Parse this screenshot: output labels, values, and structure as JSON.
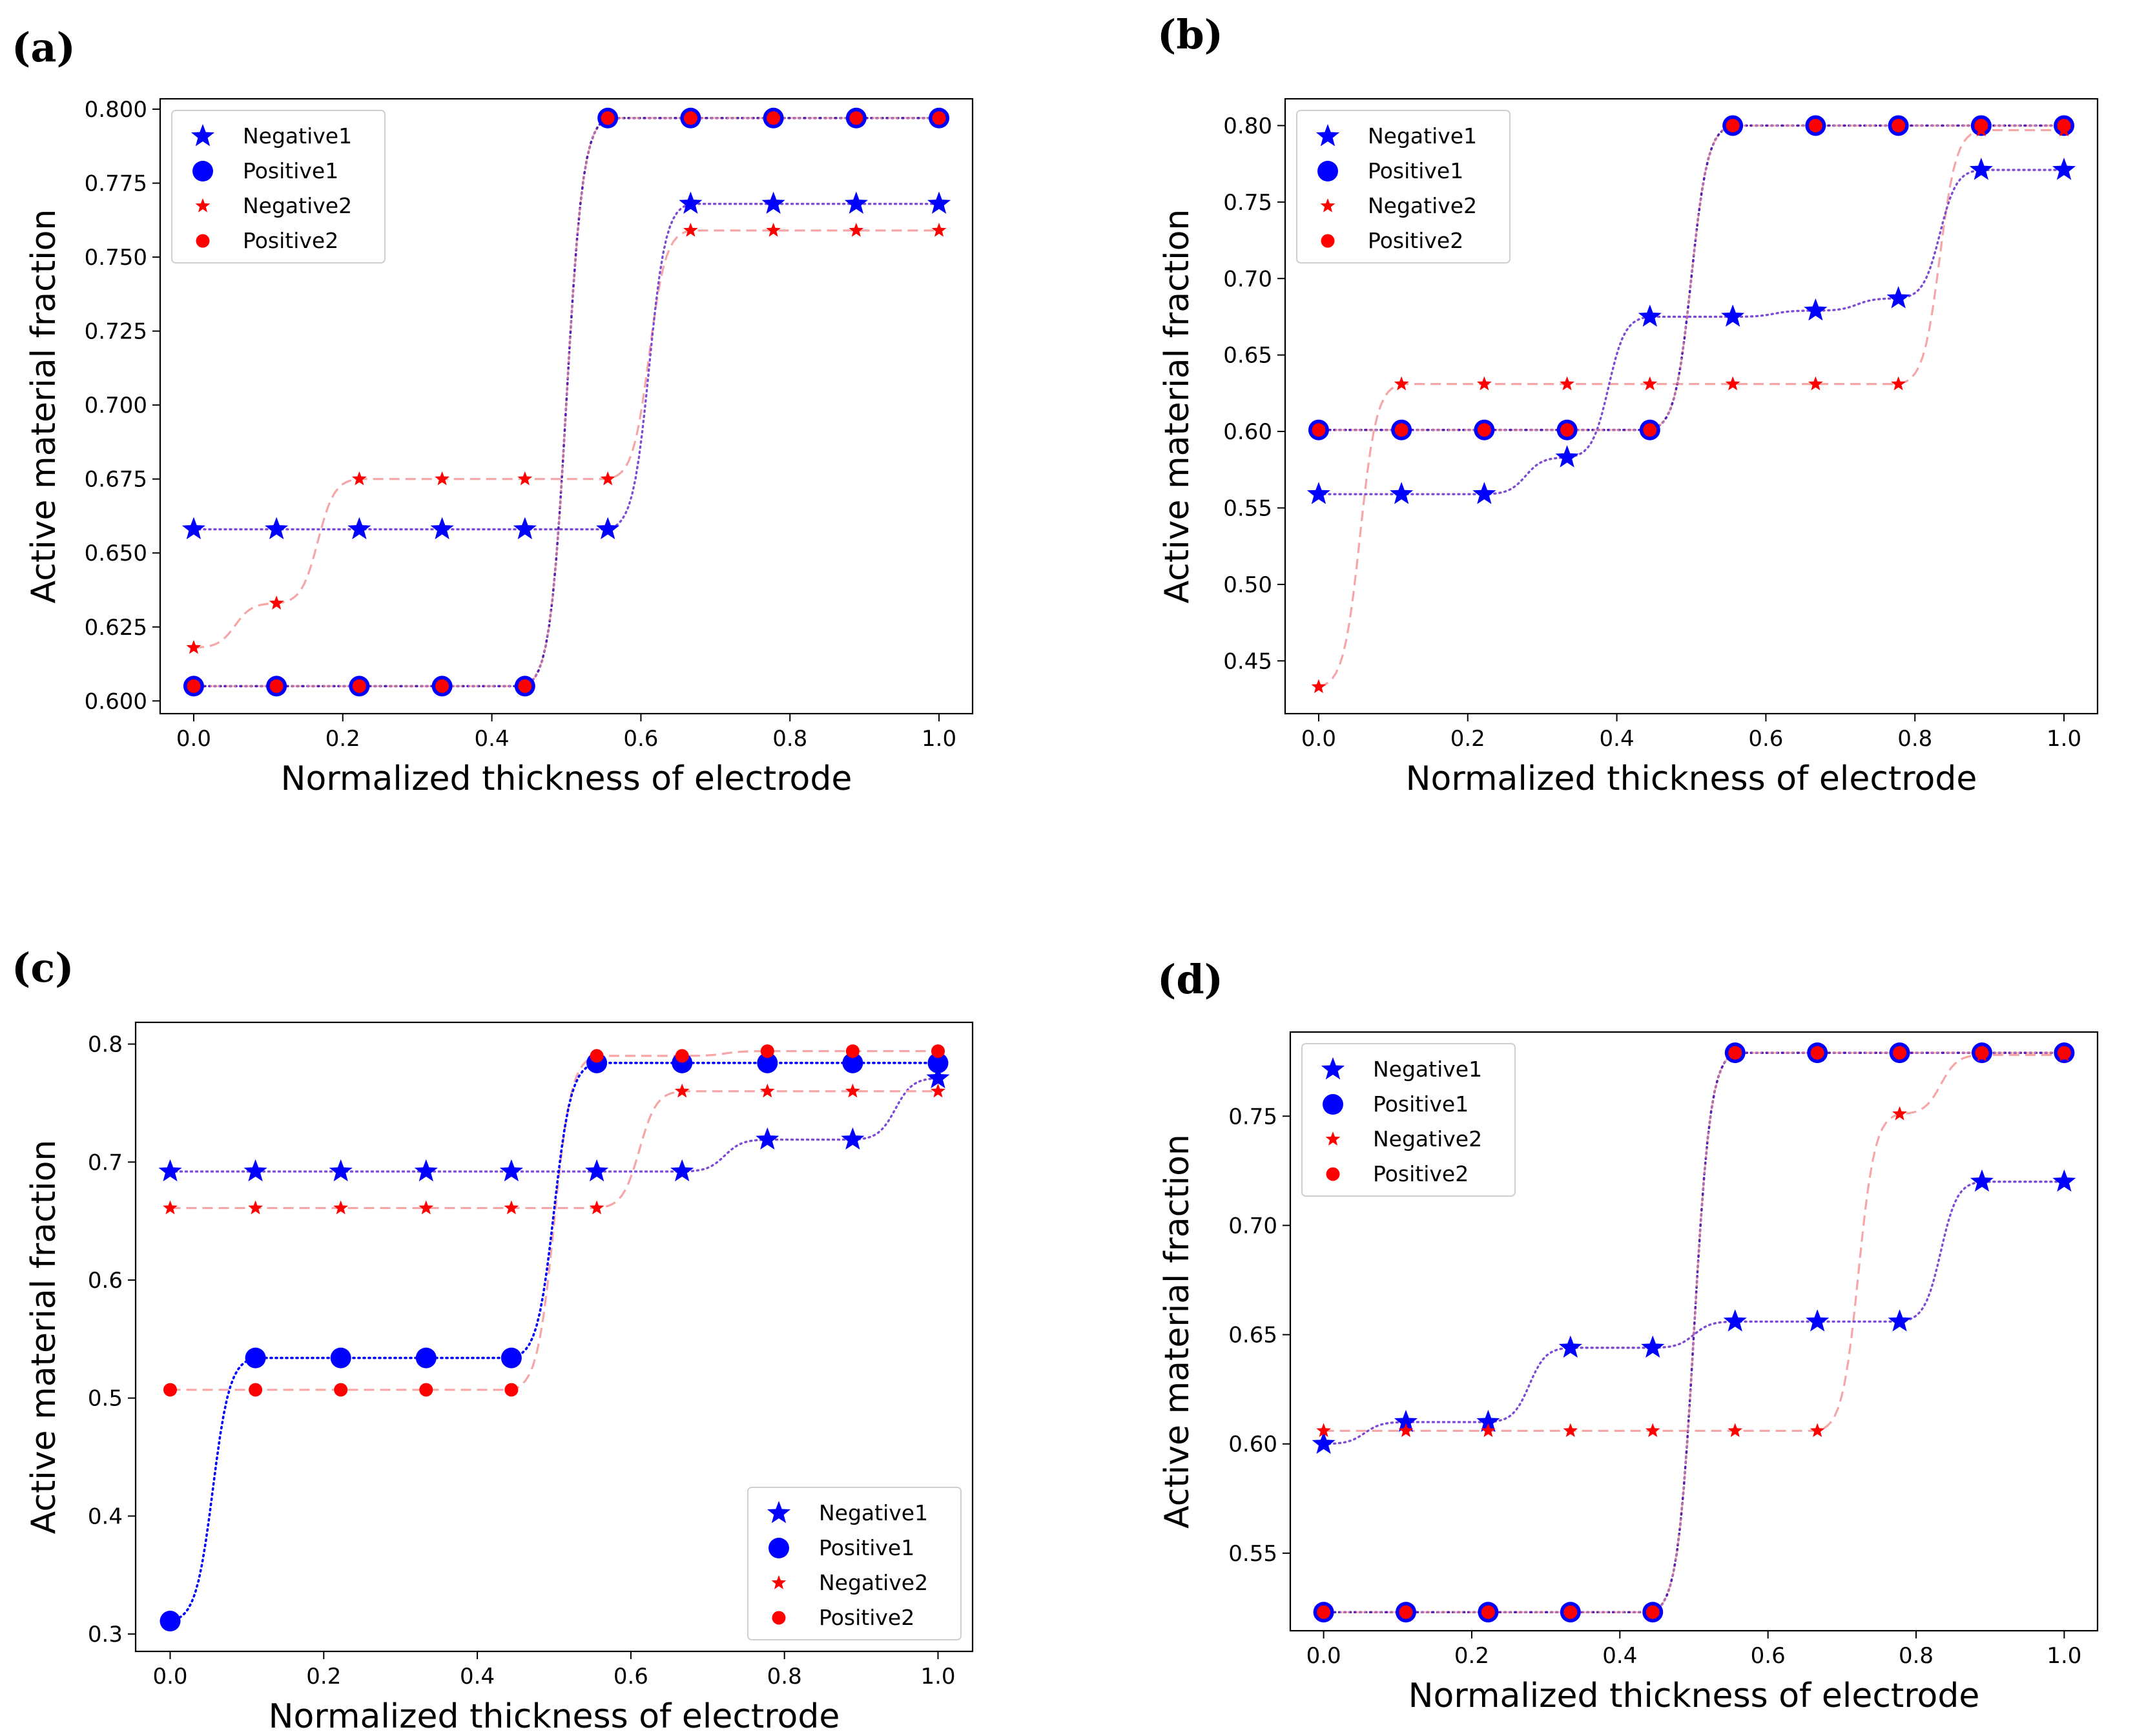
{
  "figure": {
    "colors": {
      "negative1": "#0000ff",
      "positive1": "#0000ff",
      "negative2": "#ff0000",
      "positive2": "#ff0000",
      "curve1": "#7d4bd6",
      "curve1_blue": "#0000ff",
      "curve2": "#f6a6a6"
    }
  },
  "chart_data": [
    {
      "label": "(a)",
      "type": "line",
      "xlabel": "Normalized thickness of electrode",
      "ylabel": "Active material fraction",
      "xlim": [
        -0.045,
        1.045
      ],
      "ylim": [
        0.5957,
        0.8035
      ],
      "xticks": [
        0.0,
        0.2,
        0.4,
        0.6,
        0.8,
        1.0
      ],
      "xtick_labels": [
        "0.0",
        "0.2",
        "0.4",
        "0.6",
        "0.8",
        "1.0"
      ],
      "yticks": [
        0.6,
        0.625,
        0.65,
        0.675,
        0.7,
        0.725,
        0.75,
        0.775,
        0.8
      ],
      "ytick_labels": [
        "0.600",
        "0.625",
        "0.650",
        "0.675",
        "0.700",
        "0.725",
        "0.750",
        "0.775",
        "0.800"
      ],
      "legend_position": "top-left",
      "x": [
        0.0,
        0.1111,
        0.2222,
        0.3333,
        0.4444,
        0.5556,
        0.6667,
        0.7778,
        0.8889,
        1.0
      ],
      "series": [
        {
          "name": "Negative1",
          "marker": "star-large",
          "values": [
            0.658,
            0.658,
            0.658,
            0.658,
            0.658,
            0.658,
            0.768,
            0.768,
            0.768,
            0.768
          ]
        },
        {
          "name": "Positive1",
          "marker": "circle-large",
          "values": [
            0.605,
            0.605,
            0.605,
            0.605,
            0.605,
            0.797,
            0.797,
            0.797,
            0.797,
            0.797
          ]
        },
        {
          "name": "Negative2",
          "marker": "star-small",
          "values": [
            0.618,
            0.633,
            0.675,
            0.675,
            0.675,
            0.675,
            0.759,
            0.759,
            0.759,
            0.759
          ]
        },
        {
          "name": "Positive2",
          "marker": "circle-small",
          "values": [
            0.605,
            0.605,
            0.605,
            0.605,
            0.605,
            0.797,
            0.797,
            0.797,
            0.797,
            0.797
          ]
        }
      ],
      "curve1_series": "Positive1",
      "curve1_style": "purple",
      "curve2_series": "Negative2"
    },
    {
      "label": "(b)",
      "type": "line",
      "xlabel": "Normalized thickness of electrode",
      "ylabel": "Active material fraction",
      "xlim": [
        -0.045,
        1.045
      ],
      "ylim": [
        0.4155,
        0.8175
      ],
      "xticks": [
        0.0,
        0.2,
        0.4,
        0.6,
        0.8,
        1.0
      ],
      "xtick_labels": [
        "0.0",
        "0.2",
        "0.4",
        "0.6",
        "0.8",
        "1.0"
      ],
      "yticks": [
        0.45,
        0.5,
        0.55,
        0.6,
        0.65,
        0.7,
        0.75,
        0.8
      ],
      "ytick_labels": [
        "0.45",
        "0.50",
        "0.55",
        "0.60",
        "0.65",
        "0.70",
        "0.75",
        "0.80"
      ],
      "legend_position": "top-left",
      "x": [
        0.0,
        0.1111,
        0.2222,
        0.3333,
        0.4444,
        0.5556,
        0.6667,
        0.7778,
        0.8889,
        1.0
      ],
      "series": [
        {
          "name": "Negative1",
          "marker": "star-large",
          "values": [
            0.559,
            0.559,
            0.559,
            0.583,
            0.675,
            0.675,
            0.679,
            0.687,
            0.771,
            0.771
          ]
        },
        {
          "name": "Positive1",
          "marker": "circle-large",
          "values": [
            0.601,
            0.601,
            0.601,
            0.601,
            0.601,
            0.8,
            0.8,
            0.8,
            0.8,
            0.8
          ]
        },
        {
          "name": "Negative2",
          "marker": "star-small",
          "values": [
            0.433,
            0.631,
            0.631,
            0.631,
            0.631,
            0.631,
            0.631,
            0.631,
            0.797,
            0.797
          ]
        },
        {
          "name": "Positive2",
          "marker": "circle-small",
          "values": [
            0.601,
            0.601,
            0.601,
            0.601,
            0.601,
            0.8,
            0.8,
            0.8,
            0.8,
            0.8
          ]
        }
      ],
      "curve1_series": "Positive1",
      "curve1_style": "purple",
      "curve2_series": "Negative2"
    },
    {
      "label": "(c)",
      "type": "line",
      "xlabel": "Normalized thickness of electrode",
      "ylabel": "Active material fraction",
      "xlim": [
        -0.045,
        1.045
      ],
      "ylim": [
        0.2853,
        0.8184
      ],
      "xticks": [
        0.0,
        0.2,
        0.4,
        0.6,
        0.8,
        1.0
      ],
      "xtick_labels": [
        "0.0",
        "0.2",
        "0.4",
        "0.6",
        "0.8",
        "1.0"
      ],
      "yticks": [
        0.3,
        0.4,
        0.5,
        0.6,
        0.7,
        0.8
      ],
      "ytick_labels": [
        "0.3",
        "0.4",
        "0.5",
        "0.6",
        "0.7",
        "0.8"
      ],
      "legend_position": "bottom-right",
      "x": [
        0.0,
        0.1111,
        0.2222,
        0.3333,
        0.4444,
        0.5556,
        0.6667,
        0.7778,
        0.8889,
        1.0
      ],
      "series": [
        {
          "name": "Negative1",
          "marker": "star-large",
          "values": [
            0.692,
            0.692,
            0.692,
            0.692,
            0.692,
            0.692,
            0.692,
            0.719,
            0.719,
            0.771
          ]
        },
        {
          "name": "Positive1",
          "marker": "circle-large",
          "values": [
            0.311,
            0.534,
            0.534,
            0.534,
            0.534,
            0.784,
            0.784,
            0.784,
            0.784,
            0.784
          ]
        },
        {
          "name": "Negative2",
          "marker": "star-small",
          "values": [
            0.661,
            0.661,
            0.661,
            0.661,
            0.661,
            0.661,
            0.76,
            0.76,
            0.76,
            0.76
          ]
        },
        {
          "name": "Positive2",
          "marker": "circle-small",
          "values": [
            0.507,
            0.507,
            0.507,
            0.507,
            0.507,
            0.79,
            0.79,
            0.794,
            0.794,
            0.794
          ]
        }
      ],
      "curve1_series": "Positive1",
      "curve1_style": "blue",
      "curve2_series": "Positive2"
    },
    {
      "label": "(d)",
      "type": "line",
      "xlabel": "Normalized thickness of electrode",
      "ylabel": "Active material fraction",
      "xlim": [
        -0.045,
        1.045
      ],
      "ylim": [
        0.5145,
        0.7885
      ],
      "xticks": [
        0.0,
        0.2,
        0.4,
        0.6,
        0.8,
        1.0
      ],
      "xtick_labels": [
        "0.0",
        "0.2",
        "0.4",
        "0.6",
        "0.8",
        "1.0"
      ],
      "yticks": [
        0.55,
        0.6,
        0.65,
        0.7,
        0.75
      ],
      "ytick_labels": [
        "0.55",
        "0.60",
        "0.65",
        "0.70",
        "0.75"
      ],
      "legend_position": "top-left",
      "x": [
        0.0,
        0.1111,
        0.2222,
        0.3333,
        0.4444,
        0.5556,
        0.6667,
        0.7778,
        0.8889,
        1.0
      ],
      "series": [
        {
          "name": "Negative1",
          "marker": "star-large",
          "values": [
            0.6,
            0.61,
            0.61,
            0.644,
            0.644,
            0.656,
            0.656,
            0.656,
            0.72,
            0.72
          ]
        },
        {
          "name": "Positive1",
          "marker": "circle-large",
          "values": [
            0.523,
            0.523,
            0.523,
            0.523,
            0.523,
            0.779,
            0.779,
            0.779,
            0.779,
            0.779
          ]
        },
        {
          "name": "Negative2",
          "marker": "star-small",
          "values": [
            0.606,
            0.606,
            0.606,
            0.606,
            0.606,
            0.606,
            0.606,
            0.751,
            0.778,
            0.778
          ]
        },
        {
          "name": "Positive2",
          "marker": "circle-small",
          "values": [
            0.523,
            0.523,
            0.523,
            0.523,
            0.523,
            0.779,
            0.779,
            0.779,
            0.779,
            0.779
          ]
        }
      ],
      "curve1_series": "Positive1",
      "curve1_style": "purple",
      "curve2_series": "Negative2"
    }
  ]
}
